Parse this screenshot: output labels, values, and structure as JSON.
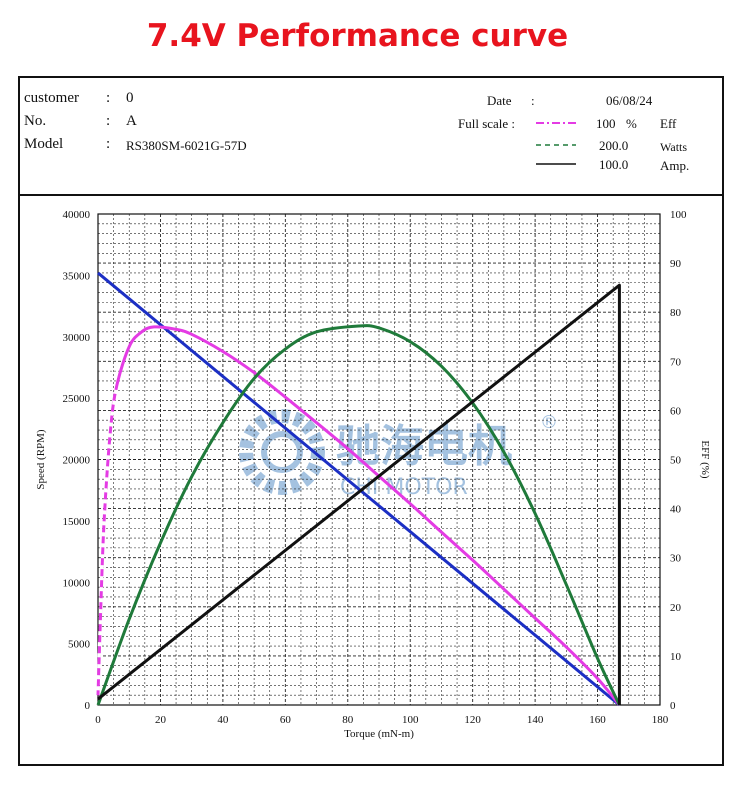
{
  "page_title": "7.4V  Performance curve",
  "info": {
    "customer_label": "customer",
    "customer_value": "0",
    "no_label": "No.",
    "no_value": "A",
    "model_label": "Model",
    "model_value": "RS380SM-6021G-57D",
    "colon": ":",
    "date_label": "Date",
    "date_value": "06/08/24",
    "full_scale_label": "Full scale :",
    "legend": [
      {
        "value": "100",
        "unit": "%",
        "name": "Eff",
        "color": "#e43be4",
        "style": "dash-dot"
      },
      {
        "value": "200.0",
        "unit": "",
        "name": "Watts",
        "color": "#1f7a3a",
        "style": "dashed"
      },
      {
        "value": "100.0",
        "unit": "",
        "name": "Amp.",
        "color": "#111111",
        "style": "solid"
      }
    ]
  },
  "watermark": {
    "cn": "驰海电机",
    "en": "CHI MOTOR",
    "reg": "®"
  },
  "chart_data": {
    "type": "line",
    "xlabel": "Torque (mN-m)",
    "ylabel_left": "Speed (RPM)",
    "ylabel_right": "EFF (%)",
    "xlim": [
      0,
      180
    ],
    "ylim_left": [
      0,
      40000
    ],
    "ylim_right": [
      0,
      100
    ],
    "x_ticks": [
      0,
      20,
      40,
      60,
      80,
      100,
      120,
      140,
      160,
      180
    ],
    "y_left_ticks": [
      0,
      5000,
      10000,
      15000,
      20000,
      25000,
      30000,
      35000,
      40000
    ],
    "y_right_ticks": [
      0,
      10,
      20,
      30,
      40,
      50,
      60,
      70,
      80,
      90,
      100
    ],
    "grid": true,
    "series": [
      {
        "name": "Speed",
        "axis": "left",
        "color": "#1c2fc4",
        "x": [
          0,
          167
        ],
        "y": [
          35200,
          0
        ]
      },
      {
        "name": "Eff",
        "axis": "right",
        "color": "#e43be4",
        "x": [
          0,
          1,
          2,
          4,
          6,
          10,
          14,
          18,
          25,
          30,
          40,
          50,
          60,
          70,
          80,
          90,
          100,
          110,
          120,
          130,
          140,
          150,
          160,
          167
        ],
        "y": [
          2,
          22,
          38,
          56,
          65,
          73,
          76,
          77,
          76.5,
          75.5,
          72,
          67.7,
          62.7,
          57.5,
          52.2,
          46.6,
          41,
          35.2,
          29.5,
          23.6,
          17.7,
          11.8,
          5.4,
          0
        ]
      },
      {
        "name": "Watts",
        "axis": "right",
        "color": "#1f7a3a",
        "x": [
          0,
          10,
          20,
          30,
          40,
          50,
          60,
          70,
          83.5,
          90,
          100,
          110,
          120,
          130,
          140,
          150,
          160,
          167
        ],
        "y": [
          0,
          17.5,
          33,
          46.5,
          57.5,
          66.5,
          72.5,
          76,
          77.2,
          76.8,
          74,
          69,
          61.5,
          51.5,
          39,
          24.5,
          9.5,
          0
        ]
      },
      {
        "name": "Amp.",
        "axis": "right",
        "color": "#111111",
        "x": [
          0,
          167,
          167
        ],
        "y": [
          1.2,
          85.5,
          0
        ]
      }
    ]
  }
}
